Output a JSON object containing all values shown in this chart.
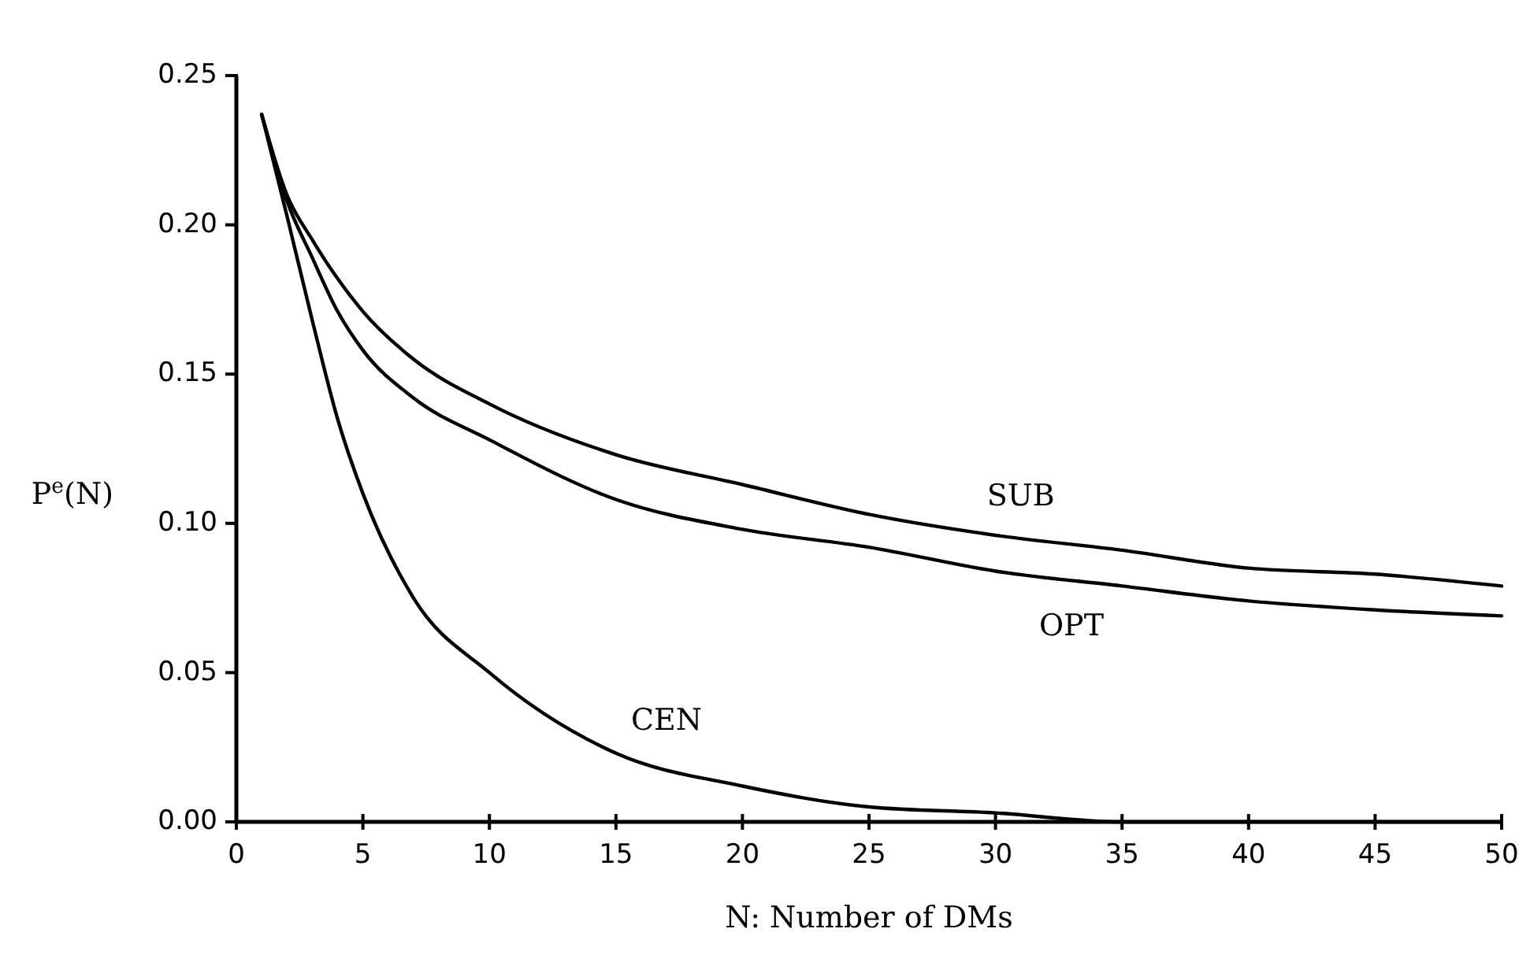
{
  "chart_data": {
    "type": "line",
    "xlabel": "N:  Number of DMs",
    "ylabel": "P$^{e}$(N)",
    "x": [
      1,
      2,
      3,
      4,
      5,
      7,
      10,
      15,
      20,
      25,
      30,
      35,
      40,
      45,
      50
    ],
    "series": [
      {
        "name": "SUB",
        "color": "#000000",
        "values": [
          0.237,
          0.21,
          0.195,
          0.182,
          0.171,
          0.155,
          0.14,
          0.123,
          0.113,
          0.103,
          0.096,
          0.091,
          0.085,
          0.083,
          0.079
        ]
      },
      {
        "name": "OPT",
        "color": "#000000",
        "values": [
          0.237,
          0.208,
          0.189,
          0.171,
          0.158,
          0.142,
          0.128,
          0.108,
          0.098,
          0.092,
          0.084,
          0.079,
          0.074,
          0.071,
          0.069
        ]
      },
      {
        "name": "CEN",
        "color": "#000000",
        "values": [
          0.237,
          0.203,
          0.168,
          0.135,
          0.11,
          0.075,
          0.05,
          0.023,
          0.012,
          0.005,
          0.003,
          0.0,
          0.0,
          0.0,
          0.0
        ]
      }
    ],
    "xlim": [
      0,
      50
    ],
    "xticks": [
      0,
      5,
      10,
      15,
      20,
      25,
      30,
      35,
      40,
      45,
      50
    ],
    "ylim": [
      0,
      0.25
    ],
    "yticks": [
      {
        "value": 0,
        "label": "0.00"
      },
      {
        "value": 0.05,
        "label": "0.05"
      },
      {
        "value": 0.1,
        "label": "0.10"
      },
      {
        "value": 0.15,
        "label": "0.15"
      },
      {
        "value": 0.2,
        "label": "0.20"
      },
      {
        "value": 0.25,
        "label": "0.25"
      }
    ],
    "grid": false,
    "marker": "none",
    "line_style": "solid"
  }
}
